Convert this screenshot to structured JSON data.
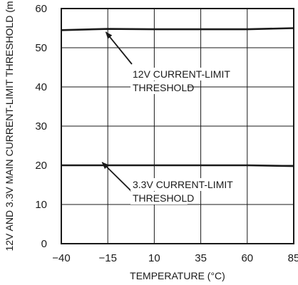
{
  "chart_data": {
    "type": "line",
    "xlabel": "TEMPERATURE (°C)",
    "ylabel": "12V AND 3.3V MAIN CURRENT-LIMIT THRESHOLD (m",
    "xlim": [
      -40,
      85
    ],
    "ylim": [
      0,
      60
    ],
    "xticks": [
      -40,
      -15,
      10,
      35,
      60,
      85
    ],
    "yticks": [
      0,
      10,
      20,
      30,
      40,
      50,
      60
    ],
    "grid": true,
    "series": [
      {
        "annotation": [
          "12V CURRENT-LIMIT",
          "THRESHOLD"
        ],
        "x": [
          -40,
          -15,
          10,
          35,
          60,
          85
        ],
        "y": [
          54.5,
          54.8,
          54.7,
          54.7,
          54.7,
          55.0
        ]
      },
      {
        "annotation": [
          "3.3V CURRENT-LIMIT",
          "THRESHOLD"
        ],
        "x": [
          -40,
          -15,
          10,
          35,
          60,
          85
        ],
        "y": [
          20.0,
          20.0,
          20.0,
          20.0,
          20.0,
          19.8
        ]
      }
    ],
    "colors": {
      "line": "#1a1a1a",
      "grid": "#1a1a1a"
    }
  }
}
